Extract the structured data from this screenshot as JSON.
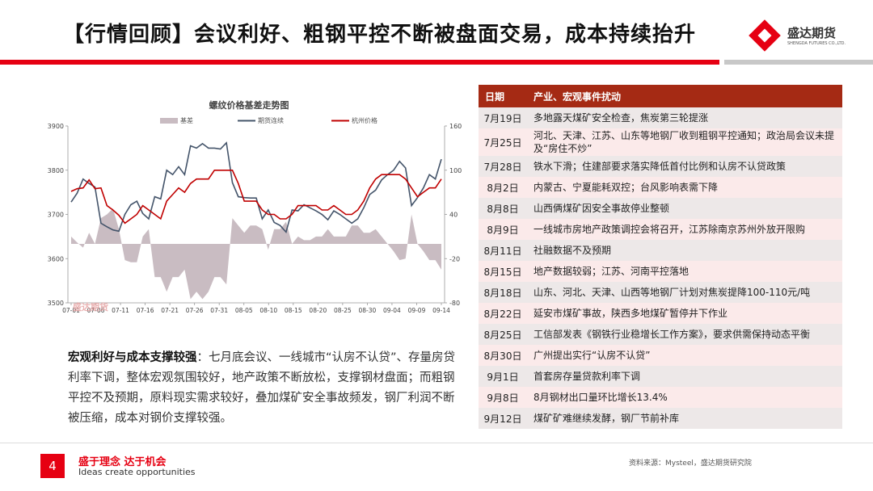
{
  "header": {
    "title": "【行情回顾】会议利好、粗钢平控不断被盘面交易，成本持续抬升",
    "logo_name": "盛达期货",
    "logo_en": "SHENGDA FUTURES CO.,LTD."
  },
  "colors": {
    "accent": "#e60012",
    "table_header": "#a52a14",
    "series_futures": "#44546a",
    "series_spot": "#c00000",
    "series_basis": "#c9bcc2"
  },
  "chart_data": {
    "type": "line",
    "title": "螺纹价格基差走势图",
    "watermark": "盛达期货",
    "legend": [
      "基差",
      "期货连续",
      "杭州价格"
    ],
    "y_left": {
      "min": 3500,
      "max": 3900,
      "ticks": [
        "3500",
        "3600",
        "3700",
        "3800",
        "3900"
      ]
    },
    "y_right": {
      "min": -80,
      "max": 160,
      "ticks": [
        "-80",
        "-20",
        "40",
        "100",
        "160"
      ]
    },
    "x_ticks": [
      "07-01",
      "07-06",
      "07-11",
      "07-16",
      "07-21",
      "07-26",
      "07-31",
      "08-05",
      "08-10",
      "08-15",
      "08-20",
      "08-25",
      "08-30",
      "09-04",
      "09-09",
      "09-14"
    ],
    "series": [
      {
        "name": "期货连续",
        "axis": "left",
        "values": [
          3728,
          3748,
          3780,
          3770,
          3762,
          3680,
          3672,
          3665,
          3662,
          3700,
          3722,
          3730,
          3702,
          3690,
          3740,
          3735,
          3800,
          3790,
          3808,
          3790,
          3855,
          3850,
          3860,
          3850,
          3850,
          3848,
          3862,
          3772,
          3740,
          3738,
          3737,
          3737,
          3690,
          3710,
          3682,
          3675,
          3660,
          3710,
          3708,
          3722,
          3715,
          3708,
          3700,
          3688,
          3708,
          3700,
          3690,
          3680,
          3690,
          3715,
          3745,
          3755,
          3778,
          3790,
          3800,
          3820,
          3805,
          3720,
          3738,
          3760,
          3790,
          3780,
          3825
        ]
      },
      {
        "name": "杭州价格",
        "axis": "left",
        "values": [
          3752,
          3758,
          3760,
          3778,
          3758,
          3760,
          3720,
          3710,
          3698,
          3680,
          3690,
          3700,
          3720,
          3710,
          3700,
          3690,
          3730,
          3745,
          3760,
          3750,
          3770,
          3780,
          3780,
          3780,
          3800,
          3800,
          3800,
          3800,
          3770,
          3730,
          3730,
          3730,
          3710,
          3700,
          3700,
          3690,
          3690,
          3700,
          3720,
          3720,
          3720,
          3720,
          3710,
          3710,
          3720,
          3710,
          3700,
          3700,
          3710,
          3730,
          3760,
          3780,
          3790,
          3790,
          3790,
          3790,
          3780,
          3760,
          3740,
          3750,
          3760,
          3760,
          3780
        ]
      },
      {
        "name": "基差",
        "axis": "right",
        "values": [
          10,
          2,
          -5,
          15,
          0,
          35,
          40,
          48,
          20,
          -22,
          -25,
          -25,
          10,
          20,
          -45,
          -45,
          -65,
          -45,
          -45,
          -35,
          -75,
          -65,
          -75,
          -65,
          -45,
          -45,
          -55,
          35,
          25,
          15,
          25,
          25,
          20,
          -8,
          20,
          20,
          30,
          0,
          10,
          5,
          5,
          10,
          10,
          20,
          10,
          10,
          10,
          25,
          25,
          15,
          15,
          20,
          10,
          0,
          -10,
          -22,
          -20,
          40,
          0,
          -10,
          -22,
          -22,
          -35
        ]
      }
    ]
  },
  "summary": {
    "lead": "宏观利好与成本支撑较强",
    "body": "：七月底会议、一线城市“认房不认贷”、存量房贷利率下调，整体宏观氛围较好，地产政策不断放松，支撑钢材盘面；而粗钢平控不及预期，原料现实需求较好，叠加煤矿安全事故频发，钢厂利润不断被压缩，成本对钢价支撑较强。"
  },
  "table": {
    "headers": [
      "日期",
      "产业、宏观事件扰动"
    ],
    "rows": [
      {
        "date": "7月19日",
        "event": "多地露天煤矿安全检查，焦炭第三轮提涨"
      },
      {
        "date": "7月25日",
        "event": "河北、天津、江苏、山东等地钢厂收到粗钢平控通知；政治局会议未提及“房住不炒”"
      },
      {
        "date": "7月28日",
        "event": "铁水下滑；住建部要求落实降低首付比例和认房不认贷政策"
      },
      {
        "date": "8月2日",
        "event": "内蒙古、宁夏能耗双控；台风影响表需下降"
      },
      {
        "date": "8月8日",
        "event": "山西俩煤矿因安全事故停业整顿"
      },
      {
        "date": "8月9日",
        "event": "一线城市房地产政策调控会将召开，江苏除南京苏州外放开限购"
      },
      {
        "date": "8月11日",
        "event": "社融数据不及预期"
      },
      {
        "date": "8月15日",
        "event": "地产数据较弱；江苏、河南平控落地"
      },
      {
        "date": "8月18日",
        "event": "山东、河北、天津、山西等地钢厂计划对焦炭提降100-110元/吨"
      },
      {
        "date": "8月22日",
        "event": "延安市煤矿事故，陕西多地煤矿暂停井下作业"
      },
      {
        "date": "8月25日",
        "event": "工信部发表《钢铁行业稳增长工作方案》，要求供需保持动态平衡"
      },
      {
        "date": "8月30日",
        "event": "广州提出实行“认房不认贷”"
      },
      {
        "date": "9月1日",
        "event": "首套房存量贷款利率下调"
      },
      {
        "date": "9月8日",
        "event": "8月钢材出口量环比增长13.4%"
      },
      {
        "date": "9月12日",
        "event": "煤矿矿难继续发酵，钢厂节前补库"
      }
    ]
  },
  "footer": {
    "page": "4",
    "slogan_cn": "盛于理念 达于机会",
    "slogan_en": "Ideas create opportunities",
    "source": "资料来源：Mysteel，盛达期货研究院"
  }
}
